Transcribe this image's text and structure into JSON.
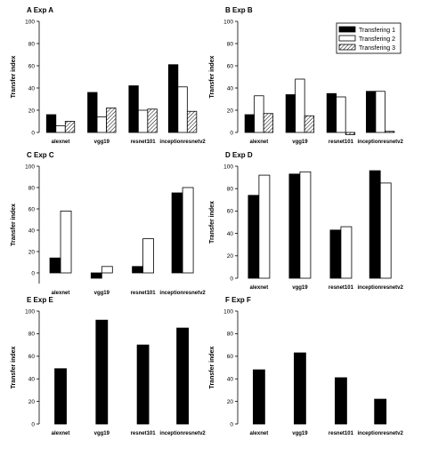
{
  "colors": {
    "series_1": "#000000",
    "series_2": "#ffffff",
    "series_3": "hatch"
  },
  "legend": [
    "Transfering 1",
    "Transfering 2",
    "Transfering 3"
  ],
  "chart_data": [
    {
      "type": "bar",
      "panel": "A",
      "title": "Exp A",
      "ylabel": "Transfer index",
      "xlabel": "",
      "ylim": [
        0,
        100
      ],
      "yticks": [
        0,
        20,
        40,
        60,
        80,
        100
      ],
      "categories": [
        "alexnet",
        "vgg19",
        "resnet101",
        "inceptionresnetv2"
      ],
      "series": [
        {
          "name": "Transfering 1",
          "values": [
            16,
            36,
            42,
            61
          ]
        },
        {
          "name": "Transfering 2",
          "values": [
            6,
            14,
            20,
            41
          ]
        },
        {
          "name": "Transfering 3",
          "values": [
            10,
            22,
            21,
            19
          ]
        }
      ]
    },
    {
      "type": "bar",
      "panel": "B",
      "title": "Exp B",
      "ylabel": "Transfer index",
      "xlabel": "",
      "ylim": [
        0,
        100
      ],
      "yticks": [
        0,
        20,
        40,
        60,
        80,
        100
      ],
      "legend_position": "top-right",
      "categories": [
        "alexnet",
        "vgg19",
        "resnet101",
        "inceptionresnetv2"
      ],
      "series": [
        {
          "name": "Transfering 1",
          "values": [
            16,
            34,
            35,
            37
          ]
        },
        {
          "name": "Transfering 2",
          "values": [
            33,
            48,
            32,
            37
          ]
        },
        {
          "name": "Transfering 3",
          "values": [
            17,
            15,
            -2,
            1
          ]
        }
      ]
    },
    {
      "type": "bar",
      "panel": "C",
      "title": "Exp C",
      "ylabel": "Transfer index",
      "xlabel": "",
      "ylim": [
        -10,
        100
      ],
      "yticks": [
        0,
        20,
        40,
        60,
        80,
        100
      ],
      "categories": [
        "alexnet",
        "vgg19",
        "resnet101",
        "inceptionresnetv2"
      ],
      "series": [
        {
          "name": "Transfering 1",
          "values": [
            14,
            -5,
            6,
            75
          ]
        },
        {
          "name": "Transfering 2",
          "values": [
            58,
            6,
            32,
            80
          ]
        }
      ]
    },
    {
      "type": "bar",
      "panel": "D",
      "title": "Exp D",
      "ylabel": "Transfer index",
      "xlabel": "",
      "ylim": [
        0,
        100
      ],
      "yticks": [
        0,
        20,
        40,
        60,
        80,
        100
      ],
      "categories": [
        "alexnet",
        "vgg19",
        "resnet101",
        "inceptionresnetv2"
      ],
      "series": [
        {
          "name": "Transfering 1",
          "values": [
            74,
            93,
            43,
            96
          ]
        },
        {
          "name": "Transfering 2",
          "values": [
            92,
            95,
            46,
            85
          ]
        }
      ]
    },
    {
      "type": "bar",
      "panel": "E",
      "title": "Exp E",
      "ylabel": "Transfer index",
      "xlabel": "",
      "ylim": [
        0,
        100
      ],
      "yticks": [
        0,
        20,
        40,
        60,
        80,
        100
      ],
      "categories": [
        "alexnet",
        "vgg19",
        "resnet101",
        "inceptionresnetv2"
      ],
      "series": [
        {
          "name": "Transfering 1",
          "values": [
            49,
            92,
            70,
            85
          ]
        }
      ]
    },
    {
      "type": "bar",
      "panel": "F",
      "title": "Exp F",
      "ylabel": "Transfer index",
      "xlabel": "",
      "ylim": [
        0,
        100
      ],
      "yticks": [
        0,
        20,
        40,
        60,
        80,
        100
      ],
      "categories": [
        "alexnet",
        "vgg19",
        "resnet101",
        "inceptionresnetv2"
      ],
      "series": [
        {
          "name": "Transfering 1",
          "values": [
            48,
            63,
            41,
            22
          ]
        }
      ]
    }
  ]
}
